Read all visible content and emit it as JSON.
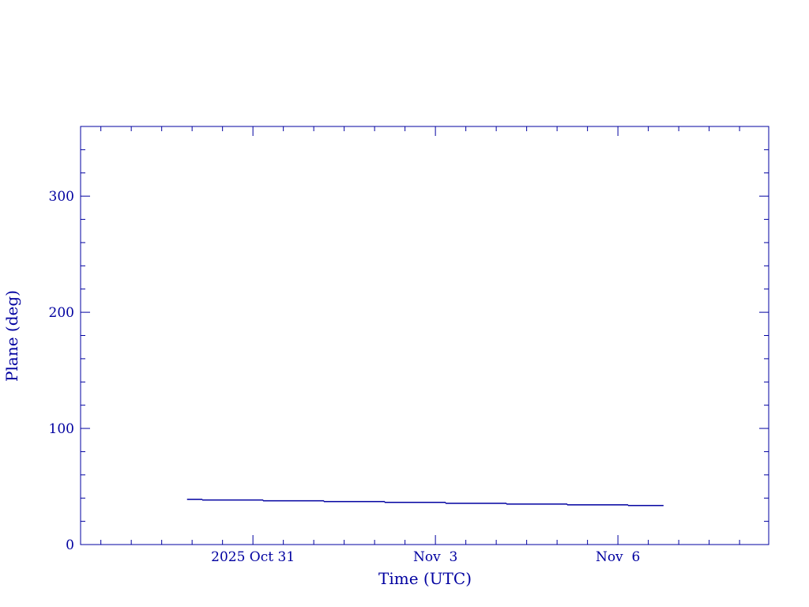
{
  "chart_data": {
    "type": "line",
    "title": "",
    "xlabel": "Time (UTC)",
    "ylabel": "Plane (deg)",
    "xlim": [
      "2025-10-28T04:00",
      "2025-11-08T11:30"
    ],
    "ylim": [
      0,
      360
    ],
    "x_ticks": [
      {
        "t": "2025-10-31T00:00",
        "label": "2025 Oct 31"
      },
      {
        "t": "2025-11-03T00:00",
        "label": "Nov  3"
      },
      {
        "t": "2025-11-06T00:00",
        "label": "Nov  6"
      }
    ],
    "y_ticks": [
      {
        "v": 0,
        "label": "0"
      },
      {
        "v": 100,
        "label": "100"
      },
      {
        "v": 200,
        "label": "200"
      },
      {
        "v": 300,
        "label": "300"
      }
    ],
    "grid": false,
    "line_style": "step",
    "color": "#0000a0",
    "series": [
      {
        "x": [
          "2025-10-29T22:00",
          "2025-10-30T04:00",
          "2025-10-31T04:00",
          "2025-11-01T04:00",
          "2025-11-02T04:00",
          "2025-11-03T04:00",
          "2025-11-04T04:00",
          "2025-11-05T04:00",
          "2025-11-06T04:00",
          "2025-11-06T18:00"
        ],
        "y": [
          39.0,
          38.4,
          37.7,
          37.0,
          36.3,
          35.6,
          34.9,
          34.2,
          33.6,
          33.6
        ]
      }
    ]
  }
}
